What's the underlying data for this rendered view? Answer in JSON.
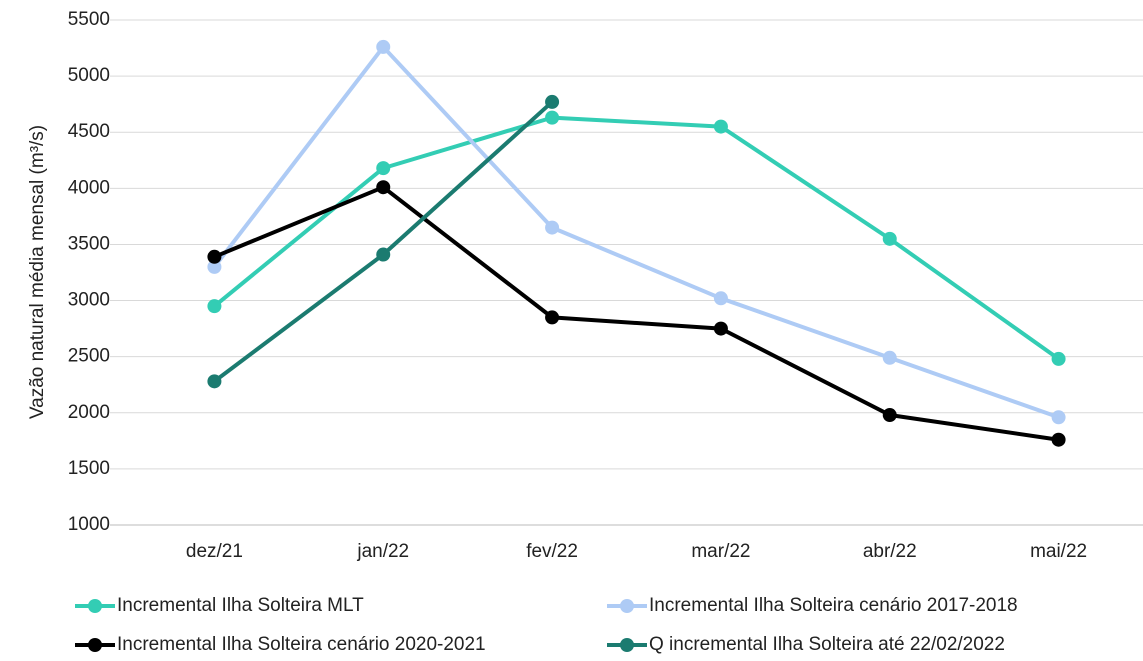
{
  "chart_data": {
    "type": "line",
    "y_label": "Vazão natural média mensal (m³/s)",
    "categories": [
      "dez/21",
      "jan/22",
      "fev/22",
      "mar/22",
      "abr/22",
      "mai/22"
    ],
    "series": [
      {
        "name": "Incremental Ilha Solteira MLT",
        "color": "#33cdb4",
        "values": [
          2950,
          4180,
          4630,
          4550,
          3550,
          2480
        ]
      },
      {
        "name": "Incremental Ilha Solteira cenário 2017-2018",
        "color": "#aecbf5",
        "values": [
          3300,
          5260,
          3650,
          3020,
          2490,
          1960
        ]
      },
      {
        "name": "Incremental Ilha Solteira cenário 2020-2021",
        "color": "#000000",
        "values": [
          3390,
          4010,
          2850,
          2750,
          1980,
          1760
        ]
      },
      {
        "name": "Q incremental Ilha Solteira até 22/02/2022",
        "color": "#1b7b70",
        "values": [
          2280,
          3410,
          4770,
          null,
          null,
          null
        ]
      }
    ],
    "ylim": [
      1000,
      5500
    ],
    "yticks": [
      1000,
      1500,
      2000,
      2500,
      3000,
      3500,
      4000,
      4500,
      5000,
      5500
    ],
    "grid": true
  }
}
